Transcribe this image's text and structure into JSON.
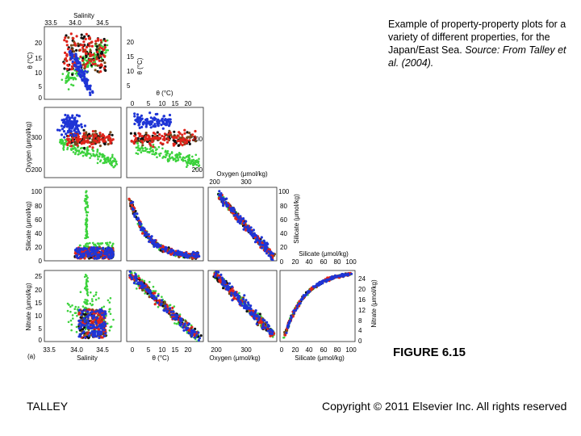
{
  "caption": {
    "text": "Example of property-property plots for a variety of different properties, for the Japan/East Sea.",
    "source_label": "Source:",
    "source_ref": "From Talley et al. (2004)."
  },
  "figure_label": "FIGURE 6.15",
  "author": "TALLEY",
  "copyright": "Copyright © 2011 Elsevier Inc. All rights reserved",
  "panel_letter": "(a)",
  "colors": {
    "blue": "#1f35d6",
    "red": "#e0241b",
    "green": "#3cd23c",
    "black": "#111111",
    "brown": "#7a4a1a"
  },
  "chart_data": {
    "type": "scatter",
    "axes": {
      "salinity": {
        "label": "Salinity",
        "ticks": [
          "33.5",
          "34.0",
          "34.5"
        ]
      },
      "theta": {
        "label": "θ (°C)",
        "ticks": [
          "0",
          "5",
          "10",
          "15",
          "20"
        ]
      },
      "oxygen": {
        "label": "Oxygen (μmol/kg)",
        "ticks": [
          "200",
          "300"
        ]
      },
      "silicate": {
        "label": "Silicate (μmol/kg)",
        "ticks": [
          "0",
          "20",
          "40",
          "60",
          "80",
          "100"
        ]
      },
      "nitrate": {
        "label": "Nitrate (μmol/kg)",
        "ticks": [
          "0",
          "4",
          "8",
          "12",
          "16",
          "20",
          "24"
        ]
      },
      "nitrate_left": {
        "ticks": [
          "0",
          "5",
          "10",
          "15",
          "20",
          "25"
        ]
      }
    },
    "panels": [
      {
        "id": "theta-salinity",
        "x": "salinity",
        "y": "theta",
        "xlim": [
          33.5,
          34.8
        ],
        "ylim": [
          0,
          22
        ]
      },
      {
        "id": "oxygen-salinity",
        "x": "salinity",
        "y": "oxygen",
        "xlim": [
          33.5,
          34.8
        ],
        "ylim": [
          180,
          370
        ]
      },
      {
        "id": "oxygen-theta",
        "x": "theta",
        "y": "oxygen",
        "xlim": [
          0,
          22
        ],
        "ylim": [
          180,
          370
        ]
      },
      {
        "id": "silicate-salinity",
        "x": "salinity",
        "y": "silicate",
        "xlim": [
          33.5,
          34.8
        ],
        "ylim": [
          0,
          100
        ]
      },
      {
        "id": "silicate-theta",
        "x": "theta",
        "y": "silicate",
        "xlim": [
          0,
          22
        ],
        "ylim": [
          0,
          100
        ]
      },
      {
        "id": "silicate-oxygen",
        "x": "oxygen",
        "y": "silicate",
        "xlim": [
          180,
          370
        ],
        "ylim": [
          0,
          100
        ]
      },
      {
        "id": "nitrate-salinity",
        "x": "salinity",
        "y": "nitrate",
        "xlim": [
          33.5,
          34.8
        ],
        "ylim": [
          0,
          27
        ]
      },
      {
        "id": "nitrate-theta",
        "x": "theta",
        "y": "nitrate",
        "xlim": [
          0,
          22
        ],
        "ylim": [
          0,
          27
        ]
      },
      {
        "id": "nitrate-oxygen",
        "x": "oxygen",
        "y": "nitrate",
        "xlim": [
          180,
          370
        ],
        "ylim": [
          0,
          27
        ]
      },
      {
        "id": "nitrate-silicate",
        "x": "silicate",
        "y": "nitrate",
        "xlim": [
          0,
          100
        ],
        "ylim": [
          0,
          27
        ]
      }
    ],
    "series_colors": [
      "blue",
      "red",
      "green",
      "black",
      "brown"
    ],
    "grid": false
  }
}
